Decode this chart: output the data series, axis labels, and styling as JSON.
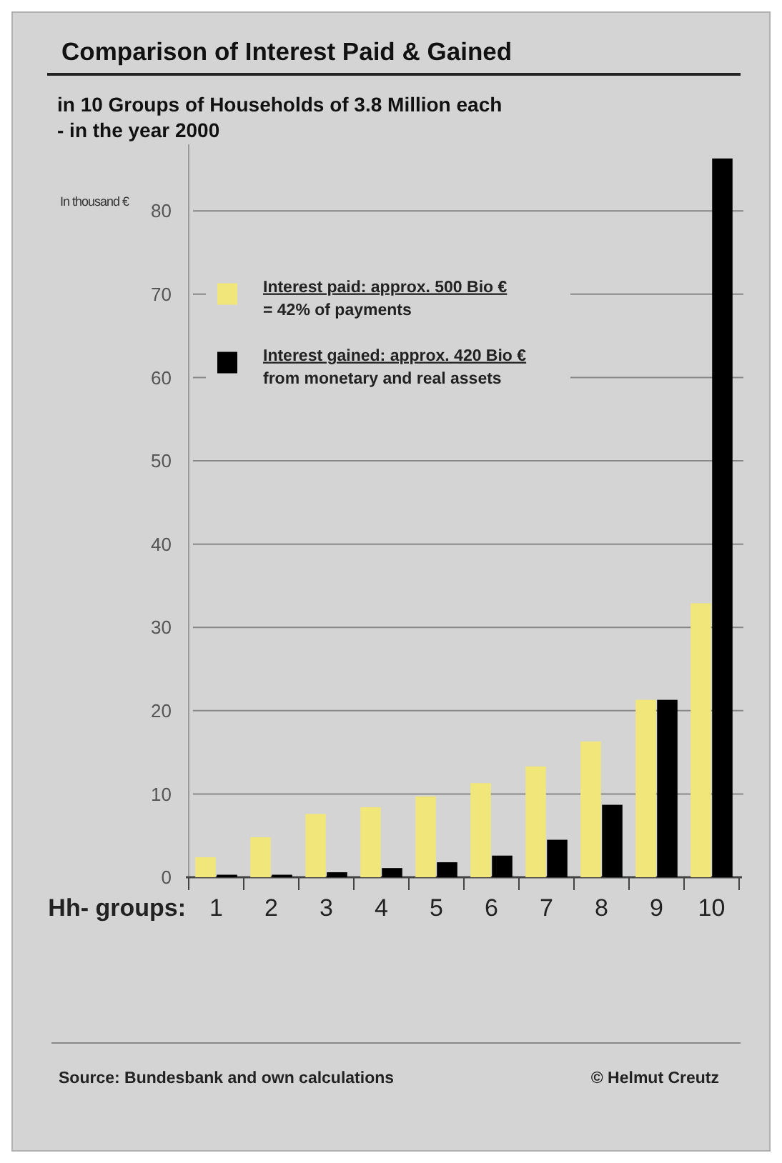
{
  "chart_data": {
    "type": "bar",
    "title": "Comparison of Interest Paid & Gained",
    "subtitle": "in 10 Groups of Households of 3.8 Million each\n- in the year 2000",
    "ylabel": "In thousand €",
    "xlabel": "Hh- groups:",
    "categories": [
      "1",
      "2",
      "3",
      "4",
      "5",
      "6",
      "7",
      "8",
      "9",
      "10"
    ],
    "series": [
      {
        "name": "Interest paid: approx. 500 Bio €\n= 42% of payments",
        "color": "#f0e67a",
        "values": [
          2.4,
          4.8,
          7.6,
          8.4,
          9.7,
          11.3,
          13.3,
          16.3,
          21.3,
          32.9
        ]
      },
      {
        "name": "Interest gained: approx. 420 Bio €\nfrom monetary and real assets",
        "color": "#000000",
        "values": [
          0.3,
          0.3,
          0.6,
          1.1,
          1.8,
          2.6,
          4.5,
          8.7,
          21.3,
          86.3
        ]
      }
    ],
    "ylim": [
      0,
      88
    ],
    "yticks": [
      0,
      10,
      20,
      30,
      40,
      50,
      60,
      70,
      80
    ],
    "grid": "y",
    "legend": "top left",
    "annotations": [
      "Source: Bundesbank and own calculations",
      "© Helmut Creutz"
    ]
  }
}
